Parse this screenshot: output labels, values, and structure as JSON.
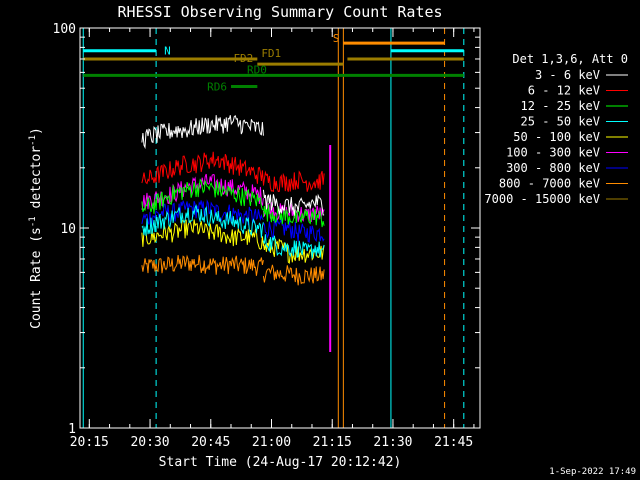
{
  "chart_data": {
    "type": "line",
    "title": "RHESSI Observing Summary Count Rates",
    "xlabel": "Start Time (24-Aug-17 20:12:42)",
    "ylabel": "Count Rate (s⁻¹ detector⁻¹)",
    "ylabel_main": "Count Rate (s",
    "ylabel_sup": "-1",
    "ylabel_tail": " detector",
    "ylabel_sup2": "-1",
    "ylabel_end": ")",
    "yscale": "log",
    "ylim": [
      1,
      100
    ],
    "xlim": [
      "20:12:42",
      "21:51:30"
    ],
    "x_ticks": [
      "20:15",
      "20:30",
      "20:45",
      "21:00",
      "21:15",
      "21:30",
      "21:45"
    ],
    "y_ticks": [
      "1",
      "10",
      "100"
    ],
    "date_stamp": "1-Sep-2022 17:49",
    "legend_title": "Det 1,3,6, Att 0",
    "legend_position": "right",
    "series": [
      {
        "name": "3 - 6 keV",
        "color": "#ffffff",
        "segments": [
          {
            "start": "20:28",
            "end": "20:58",
            "values": [
              28,
              29,
              30,
              31,
              31,
              32,
              33,
              33,
              34,
              33,
              32,
              31
            ]
          },
          {
            "start": "20:58",
            "end": "21:13",
            "values": [
              14,
              13.5,
              13,
              13,
              12.5,
              13,
              13.5,
              13
            ]
          }
        ]
      },
      {
        "name": "6 - 12 keV",
        "color": "#ff0000",
        "segments": [
          {
            "start": "20:28",
            "end": "20:58",
            "values": [
              17,
              18,
              19,
              20,
              21,
              21,
              22,
              22,
              21,
              20,
              19,
              18
            ]
          },
          {
            "start": "20:58",
            "end": "21:13",
            "values": [
              17.5,
              17,
              17,
              17,
              17.5,
              17,
              17,
              17.5
            ]
          }
        ]
      },
      {
        "name": "12 - 25 keV",
        "color": "#00ff00",
        "segments": [
          {
            "start": "20:28",
            "end": "20:58",
            "values": [
              12.5,
              13,
              14,
              15,
              15.5,
              16,
              16,
              15.5,
              15,
              14.5,
              14,
              13.5
            ]
          },
          {
            "start": "20:58",
            "end": "21:13",
            "values": [
              12,
              12,
              11.5,
              11.5,
              11,
              11.5,
              11.5,
              11
            ]
          }
        ]
      },
      {
        "name": "25 - 50 keV",
        "color": "#00ffff",
        "segments": [
          {
            "start": "20:28",
            "end": "20:58",
            "values": [
              10,
              10.5,
              11,
              11.5,
              12,
              12,
              11.5,
              11,
              11,
              10.5,
              10,
              10
            ]
          },
          {
            "start": "20:58",
            "end": "21:13",
            "values": [
              8.5,
              8.5,
              8,
              8,
              8,
              7.5,
              8,
              7.5
            ]
          }
        ]
      },
      {
        "name": "50 - 100 keV",
        "color": "#ffff00",
        "segments": [
          {
            "start": "20:28",
            "end": "20:58",
            "values": [
              9,
              9,
              9.5,
              9.5,
              10,
              10,
              9.5,
              9.5,
              9,
              9,
              9,
              8.5
            ]
          },
          {
            "start": "20:58",
            "end": "21:13",
            "values": [
              8,
              8,
              8,
              7.5,
              7.5,
              7.5,
              7.5,
              7.5
            ]
          }
        ]
      },
      {
        "name": "100 - 300 keV",
        "color": "#ff00ff",
        "segments": [
          {
            "start": "20:28",
            "end": "20:58",
            "values": [
              13.5,
              14,
              14.5,
              15,
              16,
              16.5,
              17,
              16.5,
              16,
              15.5,
              15,
              14.5
            ]
          },
          {
            "start": "20:58",
            "end": "21:13",
            "values": [
              12.5,
              12.5,
              12,
              12,
              12,
              11.5,
              12,
              11.5
            ]
          }
        ]
      },
      {
        "name": "300 - 800 keV",
        "color": "#0000ff",
        "segments": [
          {
            "start": "20:28",
            "end": "20:58",
            "values": [
              11,
              11.5,
              12,
              12,
              12.5,
              12.5,
              12.5,
              12,
              12,
              11.5,
              11.5,
              11
            ]
          },
          {
            "start": "20:58",
            "end": "21:13",
            "values": [
              10,
              10,
              10,
              10,
              9.5,
              9.5,
              9.5,
              9.5
            ]
          }
        ]
      },
      {
        "name": "800 - 7000 keV",
        "color": "#ff8c00",
        "segments": [
          {
            "start": "20:28",
            "end": "20:58",
            "values": [
              6.3,
              6.5,
              6.5,
              6.6,
              6.7,
              6.7,
              6.6,
              6.5,
              6.6,
              6.5,
              6.5,
              6.4
            ]
          },
          {
            "start": "20:58",
            "end": "21:13",
            "values": [
              6,
              6,
              5.9,
              5.9,
              5.8,
              5.8,
              5.8,
              5.8
            ]
          }
        ]
      },
      {
        "name": "7000 - 15000 keV",
        "color": "#9b7d00",
        "segments": []
      }
    ],
    "vertical_lines": [
      {
        "time": "20:13:30",
        "color": "#00ffff",
        "style": "solid"
      },
      {
        "time": "20:31:30",
        "color": "#00ffff",
        "style": "dashed"
      },
      {
        "time": "21:16:30",
        "color": "#ff8c00",
        "style": "solid"
      },
      {
        "time": "21:17:45",
        "color": "#ff8c00",
        "style": "solid"
      },
      {
        "time": "21:29:30",
        "color": "#00ffff",
        "style": "solid"
      },
      {
        "time": "21:42:45",
        "color": "#ff8c00",
        "style": "dashed"
      },
      {
        "time": "21:47:30",
        "color": "#00ffff",
        "style": "dashed"
      }
    ],
    "flag_bars": [
      {
        "name": "N",
        "color": "#00ffff",
        "segments": [
          [
            "20:13:30",
            "20:31:30"
          ],
          [
            "21:29:30",
            "21:47:30"
          ]
        ],
        "level": 77
      },
      {
        "name": "S",
        "color": "#ff8c00",
        "segments": [
          [
            "21:17:45",
            "21:42:45"
          ]
        ],
        "level": 84
      },
      {
        "name": "FD1",
        "color": "#9b7d00",
        "segments": [
          [
            "20:13:30",
            "20:56:30"
          ],
          [
            "21:18:45",
            "21:47:30"
          ]
        ],
        "level": 70
      },
      {
        "name": "FD2",
        "color": "#9b7d00",
        "segments": [
          [
            "20:56:30",
            "21:17:45"
          ]
        ],
        "level": 66
      },
      {
        "name": "RD0",
        "color": "#008000",
        "segments": [
          [
            "20:13:30",
            "21:47:30"
          ]
        ],
        "level": 58
      },
      {
        "name": "RD6",
        "color": "#008000",
        "segments": [
          [
            "20:50:00",
            "20:56:30"
          ]
        ],
        "level": 51
      }
    ],
    "spike": {
      "time": "21:14:30",
      "values": [
        26,
        2.4
      ],
      "color": "#ff00ff"
    }
  }
}
